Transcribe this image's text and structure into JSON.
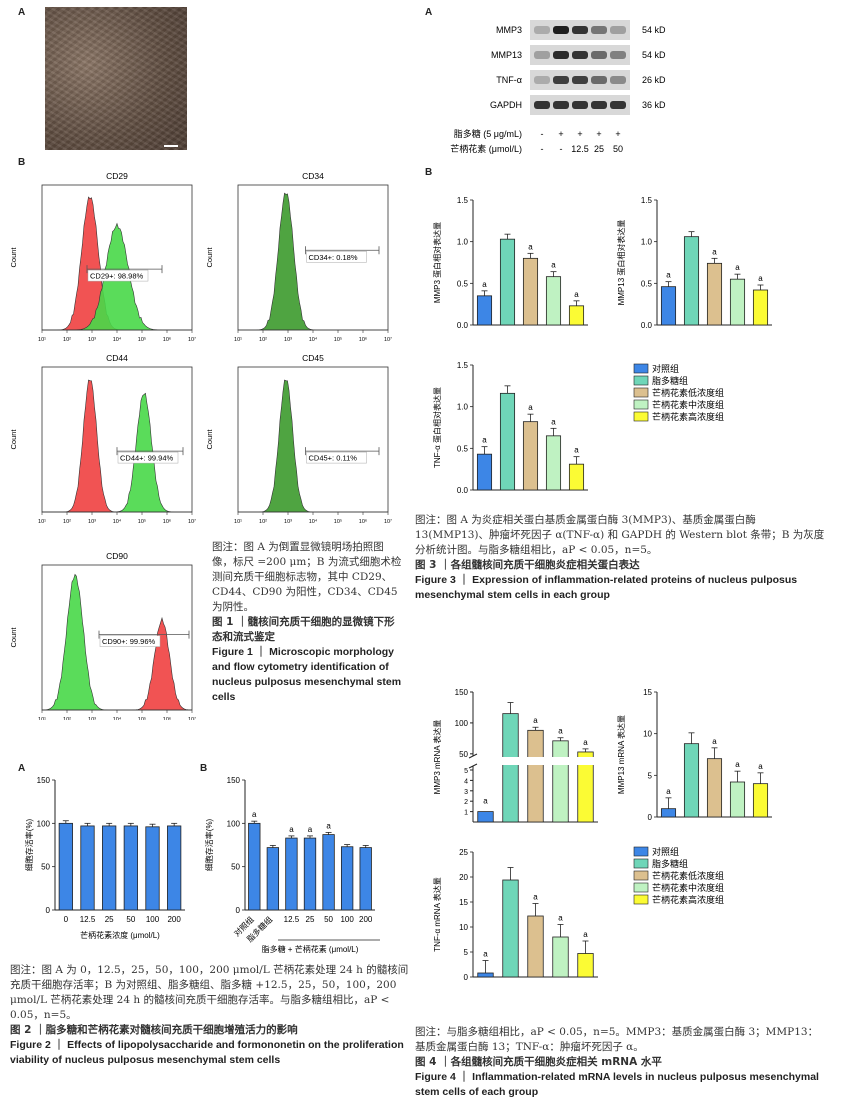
{
  "fig1": {
    "panel_a": "A",
    "panel_b": "B",
    "flow": [
      {
        "title": "CD29",
        "gate": "CD29+: 98.98%"
      },
      {
        "title": "CD34",
        "gate": "CD34+: 0.18%"
      },
      {
        "title": "CD44",
        "gate": "CD44+: 99.94%"
      },
      {
        "title": "CD45",
        "gate": "CD45+: 0.11%"
      },
      {
        "title": "CD90",
        "gate": "CD90+: 99.96%"
      }
    ],
    "ylabel": "Count",
    "caption_note": "图注：图 A 为倒置显微镜明场拍照图像，标尺 =200 μm；B 为流式细胞术检测间充质干细胞标志物，其中 CD29、CD44、CD90 为阳性，CD34、CD45 为阴性。",
    "caption_cn": "图 1 ｜髓核间充质干细胞的显微镜下形态和流式鉴定",
    "caption_en": "Figure 1 ｜ Microscopic morphology and flow cytometry identification of nucleus pulposus mesenchymal stem cells"
  },
  "fig2": {
    "panel_a": "A",
    "panel_b": "B",
    "caption_note": "图注：图 A 为 0，12.5，25，50，100，200 μmol/L 芒柄花素处理 24 h 的髓核间充质干细胞存活率；B 为对照组、脂多糖组、脂多糖 +12.5，25，50，100，200 μmol/L 芒柄花素处理 24 h 的髓核间充质干细胞存活率。与脂多糖组相比，aP < 0.05，n=5。",
    "caption_cn": "图 2 ｜脂多糖和芒柄花素对髓核间充质干细胞增殖活力的影响",
    "caption_en": "Figure 2 ｜ Effects of lipopolysaccharide and formononetin on the proliferation viability of nucleus pulposus mesenchymal stem cells"
  },
  "fig3": {
    "panel_a": "A",
    "panel_b": "B",
    "blot_labels": [
      "MMP3",
      "MMP13",
      "TNF-α",
      "GAPDH"
    ],
    "blot_kd": [
      "54 kD",
      "54 kD",
      "26 kD",
      "36 kD"
    ],
    "lps_label": "脂多糖 (5 μg/mL)",
    "lps_signs": [
      "-",
      "+",
      "+",
      "+",
      "+"
    ],
    "fmn_label": "芒柄花素 (μmol/L)",
    "fmn_signs": [
      "-",
      "-",
      "12.5",
      "25",
      "50"
    ],
    "legend": [
      "对照组",
      "脂多糖组",
      "芒柄花素低浓度组",
      "芒柄花素中浓度组",
      "芒柄花素高浓度组"
    ],
    "caption_note": "图注：图 A 为炎症相关蛋白基质金属蛋白酶 3(MMP3)、基质金属蛋白酶 13(MMP13)、肿瘤坏死因子 α(TNF-α) 和 GAPDH 的 Western blot 条带；B 为灰度分析统计图。与脂多糖组相比，aP < 0.05，n=5。",
    "caption_cn": "图 3 ｜各组髓核间充质干细胞炎症相关蛋白表达",
    "caption_en": "Figure 3 ｜ Expression of inflammation-related proteins of nucleus pulposus mesenchymal stem cells in each group"
  },
  "fig4": {
    "legend": [
      "对照组",
      "脂多糖组",
      "芒柄花素低浓度组",
      "芒柄花素中浓度组",
      "芒柄花素高浓度组"
    ],
    "caption_note": "图注：与脂多糖组相比，aP < 0.05，n=5。MMP3：基质金属蛋白酶 3；MMP13：基质金属蛋白酶 13；TNF-α：肿瘤坏死因子 α。",
    "caption_cn": "图 4 ｜各组髓核间充质干细胞炎症相关 mRNA 水平",
    "caption_en": "Figure 4 ｜ Inflammation-related mRNA levels in nucleus pulposus mesenchymal stem cells of each group"
  },
  "colors": {
    "blue": "#3d86e6",
    "teal": "#6fd6b8",
    "tan": "#dcc08f",
    "lightgreen": "#bff2c2",
    "yellow": "#fbfb34",
    "red": "#f04040",
    "green": "#48d848",
    "darkgreen": "#3c9a2c"
  },
  "chart_data": [
    {
      "type": "bar",
      "id": "fig2a",
      "categories": [
        "0",
        "12.5",
        "25",
        "50",
        "100",
        "200"
      ],
      "values": [
        100,
        97,
        97,
        97,
        96,
        97
      ],
      "xlabel": "芒柄花素浓度 (μmol/L)",
      "ylabel": "细胞存活率(%)",
      "ylim": [
        0,
        150
      ],
      "yticks": [
        0,
        50,
        100,
        150
      ]
    },
    {
      "type": "bar",
      "id": "fig2b",
      "categories": [
        "对照组",
        "脂多糖组",
        "12.5",
        "25",
        "50",
        "100",
        "200"
      ],
      "values": [
        100,
        72,
        83,
        83,
        87,
        73,
        72
      ],
      "sig": [
        "a",
        "",
        "a",
        "a",
        "a",
        "",
        ""
      ],
      "xlabel": "脂多糖 + 芒柄花素 (μmol/L)",
      "ylabel": "细胞存活率(%)",
      "ylim": [
        0,
        150
      ],
      "yticks": [
        0,
        50,
        100,
        150
      ]
    },
    {
      "type": "bar",
      "id": "fig3_mmp3",
      "values": [
        0.35,
        1.03,
        0.8,
        0.58,
        0.23
      ],
      "sig": [
        "a",
        "",
        "a",
        "a",
        "a"
      ],
      "ylabel": "MMP3 蛋白相对表达量",
      "ylim": [
        0,
        1.5
      ],
      "yticks": [
        0,
        0.5,
        1.0,
        1.5
      ]
    },
    {
      "type": "bar",
      "id": "fig3_mmp13",
      "values": [
        0.46,
        1.06,
        0.74,
        0.55,
        0.42
      ],
      "sig": [
        "a",
        "",
        "a",
        "a",
        "a"
      ],
      "ylabel": "MMP13 蛋白相对表达量",
      "ylim": [
        0,
        1.5
      ],
      "yticks": [
        0,
        0.5,
        1.0,
        1.5
      ]
    },
    {
      "type": "bar",
      "id": "fig3_tnf",
      "values": [
        0.43,
        1.16,
        0.82,
        0.65,
        0.31
      ],
      "sig": [
        "a",
        "",
        "a",
        "a",
        "a"
      ],
      "ylabel": "TNF-α 蛋白相对表达量",
      "ylim": [
        0,
        1.5
      ],
      "yticks": [
        0,
        0.5,
        1.0,
        1.5
      ]
    },
    {
      "type": "bar",
      "id": "fig4_mmp3",
      "values": [
        1,
        115,
        88,
        71,
        53
      ],
      "sig": [
        "a",
        "",
        "a",
        "a",
        "a"
      ],
      "ylabel": "MMP3 mRNA 表达量",
      "ylim": [
        0,
        150
      ],
      "yticks": [
        1,
        2,
        3,
        4,
        5,
        50,
        100,
        150
      ],
      "broken_axis": true
    },
    {
      "type": "bar",
      "id": "fig4_mmp13",
      "values": [
        1,
        8.8,
        7.0,
        4.2,
        4.0
      ],
      "sig": [
        "a",
        "",
        "a",
        "a",
        "a"
      ],
      "ylabel": "MMP13 mRNA 表达量",
      "ylim": [
        0,
        15
      ],
      "yticks": [
        0,
        5,
        10,
        15
      ]
    },
    {
      "type": "bar",
      "id": "fig4_tnf",
      "values": [
        0.8,
        19.4,
        12.2,
        8.0,
        4.7
      ],
      "sig": [
        "a",
        "",
        "a",
        "a",
        "a"
      ],
      "ylabel": "TNF-α mRNA 表达量",
      "ylim": [
        0,
        25
      ],
      "yticks": [
        0,
        5,
        10,
        15,
        20,
        25
      ]
    }
  ]
}
